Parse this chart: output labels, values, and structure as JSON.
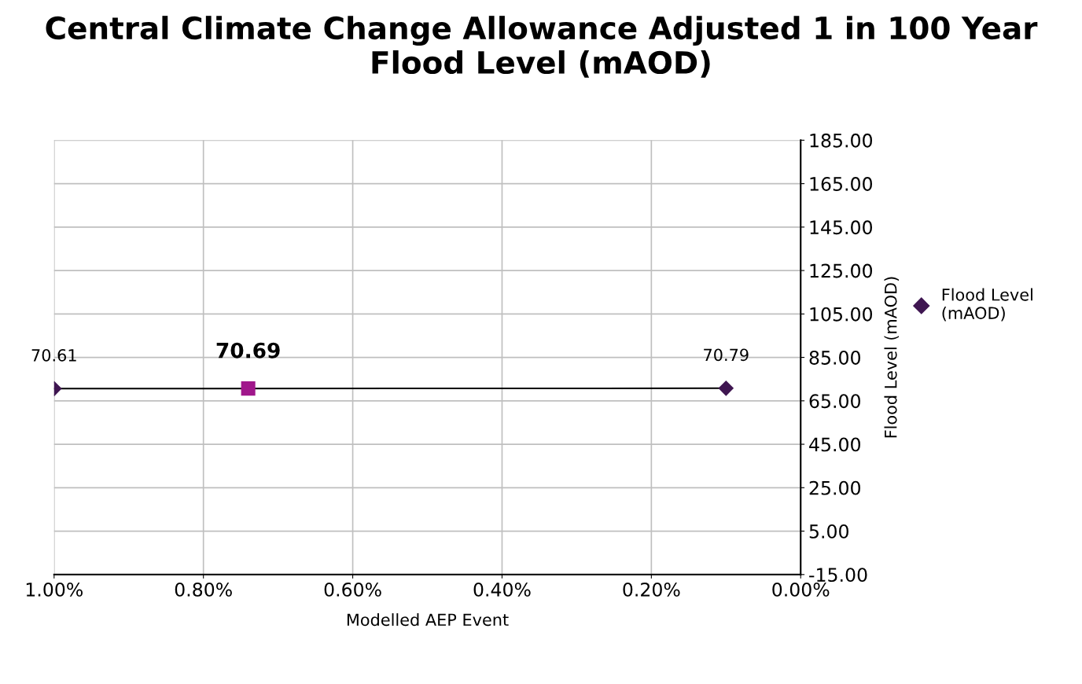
{
  "chart_data": {
    "type": "line",
    "title": "Central Climate Change Allowance Adjusted 1 in 100 Year Flood Level (mAOD)",
    "xlabel": "Modelled AEP Event",
    "ylabel": "Flood Level (mAOD)",
    "xlim": [
      1.0,
      0.0
    ],
    "xticks": [
      {
        "value": 1.0,
        "label": "1.00%"
      },
      {
        "value": 0.8,
        "label": "0.80%"
      },
      {
        "value": 0.6,
        "label": "0.60%"
      },
      {
        "value": 0.4,
        "label": "0.40%"
      },
      {
        "value": 0.2,
        "label": "0.20%"
      },
      {
        "value": 0.0,
        "label": "0.00%"
      }
    ],
    "ylim": [
      -15,
      185
    ],
    "yticks": [
      {
        "value": -15,
        "label": "-15.00"
      },
      {
        "value": 5,
        "label": "5.00"
      },
      {
        "value": 25,
        "label": "25.00"
      },
      {
        "value": 45,
        "label": "45.00"
      },
      {
        "value": 65,
        "label": "65.00"
      },
      {
        "value": 85,
        "label": "85.00"
      },
      {
        "value": 105,
        "label": "105.00"
      },
      {
        "value": 125,
        "label": "125.00"
      },
      {
        "value": 145,
        "label": "145.00"
      },
      {
        "value": 165,
        "label": "165.00"
      },
      {
        "value": 185,
        "label": "185.00"
      }
    ],
    "series": [
      {
        "name": "Flood Level (mAOD)",
        "color": "#3f1651",
        "marker": "diamond",
        "x": [
          1.0,
          0.1
        ],
        "values": [
          70.61,
          70.79
        ]
      },
      {
        "type": "scatter",
        "color": "#a0178b",
        "marker": "square",
        "x": [
          0.74
        ],
        "values": [
          70.69
        ]
      }
    ],
    "data_labels": true,
    "grid": true,
    "legend": "right"
  }
}
